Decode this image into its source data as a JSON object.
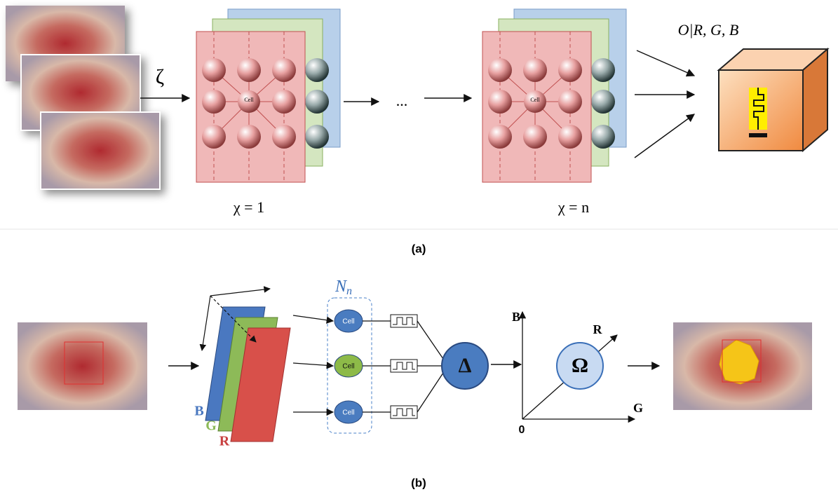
{
  "panel_a": {
    "input_symbol": "ζ",
    "stacks": [
      {
        "cell_label": "Cell",
        "caption": "χ = 1"
      },
      {
        "cell_label": "Cell",
        "caption": "χ = n"
      }
    ],
    "ellipsis": "...",
    "output_label": "O|R, G, B",
    "caption": "(a)"
  },
  "panel_b": {
    "network_label": {
      "base": "N",
      "subscript": "n"
    },
    "cells": [
      "Cell",
      "Cell",
      "Cell"
    ],
    "aggregator": "Δ",
    "axes": {
      "y": "B",
      "x": "G",
      "z": "R",
      "origin": "0"
    },
    "classifier": "Ω",
    "channels": [
      "B",
      "G",
      "R"
    ],
    "caption": "(b)"
  }
}
